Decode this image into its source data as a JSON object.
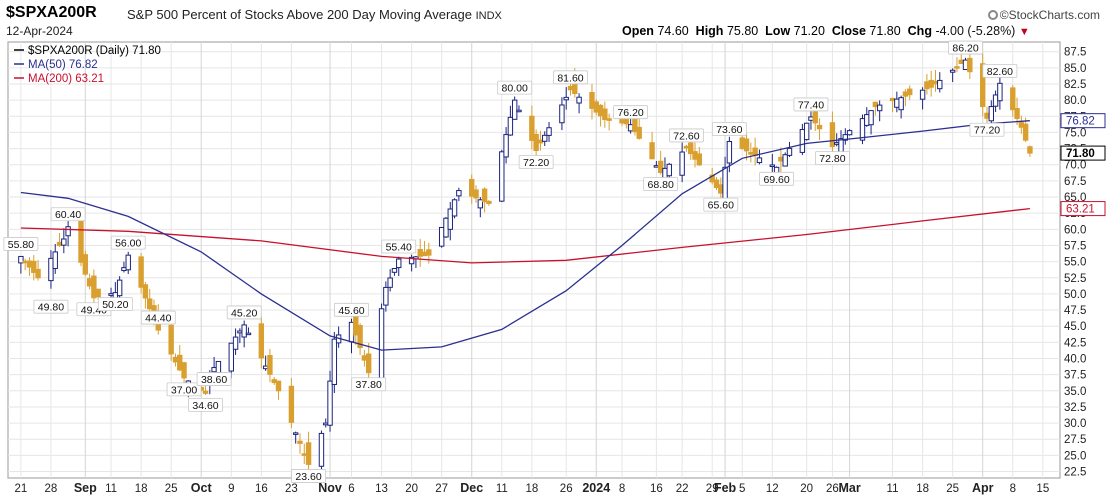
{
  "header": {
    "symbol": "$SPXA200R",
    "description": "S&P 500 Percent of Stocks Above 200 Day Moving Average",
    "exchange": "INDX",
    "watermark": "©StockCharts.com",
    "date": "12-Apr-2024",
    "open_label": "Open",
    "open": "74.60",
    "high_label": "High",
    "high": "75.80",
    "low_label": "Low",
    "low": "71.20",
    "close_label": "Close",
    "close": "71.80",
    "chg_label": "Chg",
    "chg": "-4.00 (-5.28%)",
    "chg_icon": "down-triangle-icon"
  },
  "legend": [
    {
      "label": "$SPXA200R (Daily) 71.80",
      "color": "#000000",
      "icon": "candle-icon"
    },
    {
      "label": "MA(50) 76.82",
      "color": "#2b2f8f"
    },
    {
      "label": "MA(200) 63.21",
      "color": "#c8102e"
    }
  ],
  "colors": {
    "up": "#1a237e",
    "down": "#d9a030",
    "ma50": "#2b2f8f",
    "ma200": "#c8102e",
    "grid": "#e6e6e6"
  },
  "chart_data": {
    "type": "candlestick",
    "title": "$SPXA200R S&P 500 Percent of Stocks Above 200 Day Moving Average",
    "ylim": [
      21.5,
      89
    ],
    "y_ticks": [
      "22.5",
      "25.0",
      "27.5",
      "30.0",
      "32.5",
      "35.0",
      "37.5",
      "40.0",
      "42.5",
      "45.0",
      "47.5",
      "50.0",
      "52.5",
      "55.0",
      "57.5",
      "60.0",
      "62.5",
      "65.0",
      "67.5",
      "70.0",
      "72.5",
      "75.0",
      "77.5",
      "80.0",
      "82.5",
      "85.0",
      "87.5"
    ],
    "x_ticks": [
      {
        "label": "21",
        "date": "2023-08-21",
        "bold": false
      },
      {
        "label": "28",
        "date": "2023-08-28",
        "bold": false
      },
      {
        "label": "Sep",
        "date": "2023-09-05",
        "bold": true
      },
      {
        "label": "11",
        "date": "2023-09-11",
        "bold": false
      },
      {
        "label": "18",
        "date": "2023-09-18",
        "bold": false
      },
      {
        "label": "25",
        "date": "2023-09-25",
        "bold": false
      },
      {
        "label": "Oct",
        "date": "2023-10-02",
        "bold": true
      },
      {
        "label": "9",
        "date": "2023-10-09",
        "bold": false
      },
      {
        "label": "16",
        "date": "2023-10-16",
        "bold": false
      },
      {
        "label": "23",
        "date": "2023-10-23",
        "bold": false
      },
      {
        "label": "Nov",
        "date": "2023-11-01",
        "bold": true
      },
      {
        "label": "6",
        "date": "2023-11-06",
        "bold": false
      },
      {
        "label": "13",
        "date": "2023-11-13",
        "bold": false
      },
      {
        "label": "20",
        "date": "2023-11-20",
        "bold": false
      },
      {
        "label": "27",
        "date": "2023-11-27",
        "bold": false
      },
      {
        "label": "Dec",
        "date": "2023-12-04",
        "bold": true
      },
      {
        "label": "11",
        "date": "2023-12-11",
        "bold": false
      },
      {
        "label": "18",
        "date": "2023-12-18",
        "bold": false
      },
      {
        "label": "26",
        "date": "2023-12-26",
        "bold": false
      },
      {
        "label": "2024",
        "date": "2024-01-02",
        "bold": true
      },
      {
        "label": "8",
        "date": "2024-01-08",
        "bold": false
      },
      {
        "label": "16",
        "date": "2024-01-16",
        "bold": false
      },
      {
        "label": "22",
        "date": "2024-01-22",
        "bold": false
      },
      {
        "label": "29",
        "date": "2024-01-29",
        "bold": false
      },
      {
        "label": "Feb",
        "date": "2024-02-01",
        "bold": true
      },
      {
        "label": "5",
        "date": "2024-02-05",
        "bold": false
      },
      {
        "label": "12",
        "date": "2024-02-12",
        "bold": false
      },
      {
        "label": "20",
        "date": "2024-02-20",
        "bold": false
      },
      {
        "label": "26",
        "date": "2024-02-26",
        "bold": false
      },
      {
        "label": "Mar",
        "date": "2024-03-01",
        "bold": true
      },
      {
        "label": "11",
        "date": "2024-03-11",
        "bold": false
      },
      {
        "label": "18",
        "date": "2024-03-18",
        "bold": false
      },
      {
        "label": "25",
        "date": "2024-03-25",
        "bold": false
      },
      {
        "label": "Apr",
        "date": "2024-04-01",
        "bold": true
      },
      {
        "label": "8",
        "date": "2024-04-08",
        "bold": false
      },
      {
        "label": "15",
        "date": "2024-04-15",
        "bold": false
      }
    ],
    "closes": [
      {
        "date": "2023-08-21",
        "close": 55.8
      },
      {
        "date": "2023-08-25",
        "close": 52.5
      },
      {
        "date": "2023-08-31",
        "close": 58.5
      },
      {
        "date": "2023-09-01",
        "close": 60.4
      },
      {
        "date": "2023-09-07",
        "close": 49.4
      },
      {
        "date": "2023-09-12",
        "close": 50.2
      },
      {
        "date": "2023-09-15",
        "close": 56.0
      },
      {
        "date": "2023-09-22",
        "close": 44.4
      },
      {
        "date": "2023-09-28",
        "close": 37.0
      },
      {
        "date": "2023-10-03",
        "close": 34.6
      },
      {
        "date": "2023-10-05",
        "close": 38.6
      },
      {
        "date": "2023-10-12",
        "close": 45.2
      },
      {
        "date": "2023-10-20",
        "close": 35.0
      },
      {
        "date": "2023-10-27",
        "close": 23.6
      },
      {
        "date": "2023-10-31",
        "close": 30.0
      },
      {
        "date": "2023-11-02",
        "close": 43.0
      },
      {
        "date": "2023-11-06",
        "close": 45.6
      },
      {
        "date": "2023-11-10",
        "close": 37.8
      },
      {
        "date": "2023-11-14",
        "close": 51.0
      },
      {
        "date": "2023-11-17",
        "close": 55.4
      },
      {
        "date": "2023-11-24",
        "close": 56.0
      },
      {
        "date": "2023-12-01",
        "close": 66.0
      },
      {
        "date": "2023-12-08",
        "close": 64.0
      },
      {
        "date": "2023-12-14",
        "close": 80.0
      },
      {
        "date": "2023-12-19",
        "close": 72.2
      },
      {
        "date": "2023-12-27",
        "close": 81.6
      },
      {
        "date": "2024-01-04",
        "close": 77.0
      },
      {
        "date": "2024-01-10",
        "close": 76.2
      },
      {
        "date": "2024-01-17",
        "close": 68.8
      },
      {
        "date": "2024-01-23",
        "close": 72.6
      },
      {
        "date": "2024-01-31",
        "close": 65.6
      },
      {
        "date": "2024-02-02",
        "close": 73.6
      },
      {
        "date": "2024-02-13",
        "close": 69.6
      },
      {
        "date": "2024-02-21",
        "close": 77.4
      },
      {
        "date": "2024-02-26",
        "close": 72.8
      },
      {
        "date": "2024-03-07",
        "close": 79.0
      },
      {
        "date": "2024-03-20",
        "close": 82.0
      },
      {
        "date": "2024-03-28",
        "close": 86.2
      },
      {
        "date": "2024-04-02",
        "close": 77.2
      },
      {
        "date": "2024-04-05",
        "close": 82.6
      },
      {
        "date": "2024-04-10",
        "close": 75.8
      },
      {
        "date": "2024-04-12",
        "close": 71.8
      }
    ],
    "annotations": [
      {
        "text": "55.80",
        "date": "2023-08-21",
        "value": 55.8,
        "side": "above"
      },
      {
        "text": "49.80",
        "date": "2023-08-28",
        "value": 49.8,
        "side": "below"
      },
      {
        "text": "60.40",
        "date": "2023-09-01",
        "value": 60.4,
        "side": "above"
      },
      {
        "text": "49.40",
        "date": "2023-09-07",
        "value": 49.4,
        "side": "below"
      },
      {
        "text": "50.20",
        "date": "2023-09-12",
        "value": 50.2,
        "side": "below"
      },
      {
        "text": "56.00",
        "date": "2023-09-15",
        "value": 56.0,
        "side": "above"
      },
      {
        "text": "44.40",
        "date": "2023-09-22",
        "value": 44.4,
        "side": "above"
      },
      {
        "text": "37.00",
        "date": "2023-09-28",
        "value": 37.0,
        "side": "below"
      },
      {
        "text": "34.60",
        "date": "2023-10-03",
        "value": 34.6,
        "side": "below"
      },
      {
        "text": "38.60",
        "date": "2023-10-05",
        "value": 38.6,
        "side": "below"
      },
      {
        "text": "45.20",
        "date": "2023-10-12",
        "value": 45.2,
        "side": "above"
      },
      {
        "text": "23.60",
        "date": "2023-10-27",
        "value": 23.6,
        "side": "below"
      },
      {
        "text": "45.60",
        "date": "2023-11-06",
        "value": 45.6,
        "side": "above"
      },
      {
        "text": "37.80",
        "date": "2023-11-10",
        "value": 37.8,
        "side": "below"
      },
      {
        "text": "55.40",
        "date": "2023-11-17",
        "value": 55.4,
        "side": "above"
      },
      {
        "text": "80.00",
        "date": "2023-12-14",
        "value": 80.0,
        "side": "above"
      },
      {
        "text": "72.20",
        "date": "2023-12-19",
        "value": 72.2,
        "side": "below"
      },
      {
        "text": "81.60",
        "date": "2023-12-27",
        "value": 81.6,
        "side": "above"
      },
      {
        "text": "76.20",
        "date": "2024-01-10",
        "value": 76.2,
        "side": "above"
      },
      {
        "text": "72.60",
        "date": "2024-01-23",
        "value": 72.6,
        "side": "above"
      },
      {
        "text": "68.80",
        "date": "2024-01-17",
        "value": 68.8,
        "side": "below"
      },
      {
        "text": "65.60",
        "date": "2024-01-31",
        "value": 65.6,
        "side": "below"
      },
      {
        "text": "73.60",
        "date": "2024-02-02",
        "value": 73.6,
        "side": "above"
      },
      {
        "text": "69.60",
        "date": "2024-02-13",
        "value": 69.6,
        "side": "below"
      },
      {
        "text": "77.40",
        "date": "2024-02-21",
        "value": 77.4,
        "side": "above"
      },
      {
        "text": "72.80",
        "date": "2024-02-26",
        "value": 72.8,
        "side": "below"
      },
      {
        "text": "86.20",
        "date": "2024-03-28",
        "value": 86.2,
        "side": "above"
      },
      {
        "text": "82.60",
        "date": "2024-04-05",
        "value": 82.6,
        "side": "above"
      },
      {
        "text": "77.20",
        "date": "2024-04-02",
        "value": 77.2,
        "side": "below"
      }
    ],
    "ma50": [
      {
        "date": "2023-08-21",
        "value": 65.7
      },
      {
        "date": "2023-09-01",
        "value": 64.8
      },
      {
        "date": "2023-09-15",
        "value": 62.0
      },
      {
        "date": "2023-10-02",
        "value": 56.5
      },
      {
        "date": "2023-10-16",
        "value": 50.0
      },
      {
        "date": "2023-11-01",
        "value": 43.5
      },
      {
        "date": "2023-11-13",
        "value": 41.3
      },
      {
        "date": "2023-11-27",
        "value": 41.8
      },
      {
        "date": "2023-12-11",
        "value": 44.5
      },
      {
        "date": "2023-12-26",
        "value": 50.5
      },
      {
        "date": "2024-01-08",
        "value": 57.5
      },
      {
        "date": "2024-01-22",
        "value": 65.5
      },
      {
        "date": "2024-02-05",
        "value": 71.0
      },
      {
        "date": "2024-02-20",
        "value": 73.3
      },
      {
        "date": "2024-03-04",
        "value": 74.2
      },
      {
        "date": "2024-03-18",
        "value": 75.2
      },
      {
        "date": "2024-04-01",
        "value": 76.3
      },
      {
        "date": "2024-04-12",
        "value": 76.82
      }
    ],
    "ma200": [
      {
        "date": "2023-08-21",
        "value": 60.2
      },
      {
        "date": "2023-09-15",
        "value": 59.7
      },
      {
        "date": "2023-10-16",
        "value": 58.2
      },
      {
        "date": "2023-11-13",
        "value": 55.8
      },
      {
        "date": "2023-12-04",
        "value": 54.8
      },
      {
        "date": "2023-12-26",
        "value": 55.2
      },
      {
        "date": "2024-01-22",
        "value": 57.2
      },
      {
        "date": "2024-02-20",
        "value": 59.2
      },
      {
        "date": "2024-03-18",
        "value": 61.3
      },
      {
        "date": "2024-04-12",
        "value": 63.21
      }
    ],
    "last_labels": [
      {
        "text": "76.82",
        "value": 76.82,
        "color": "#2b2f8f",
        "bold": false
      },
      {
        "text": "71.80",
        "value": 71.8,
        "color": "#000000",
        "bold": true
      },
      {
        "text": "63.21",
        "value": 63.21,
        "color": "#c8102e",
        "bold": false
      }
    ],
    "grid": true
  }
}
